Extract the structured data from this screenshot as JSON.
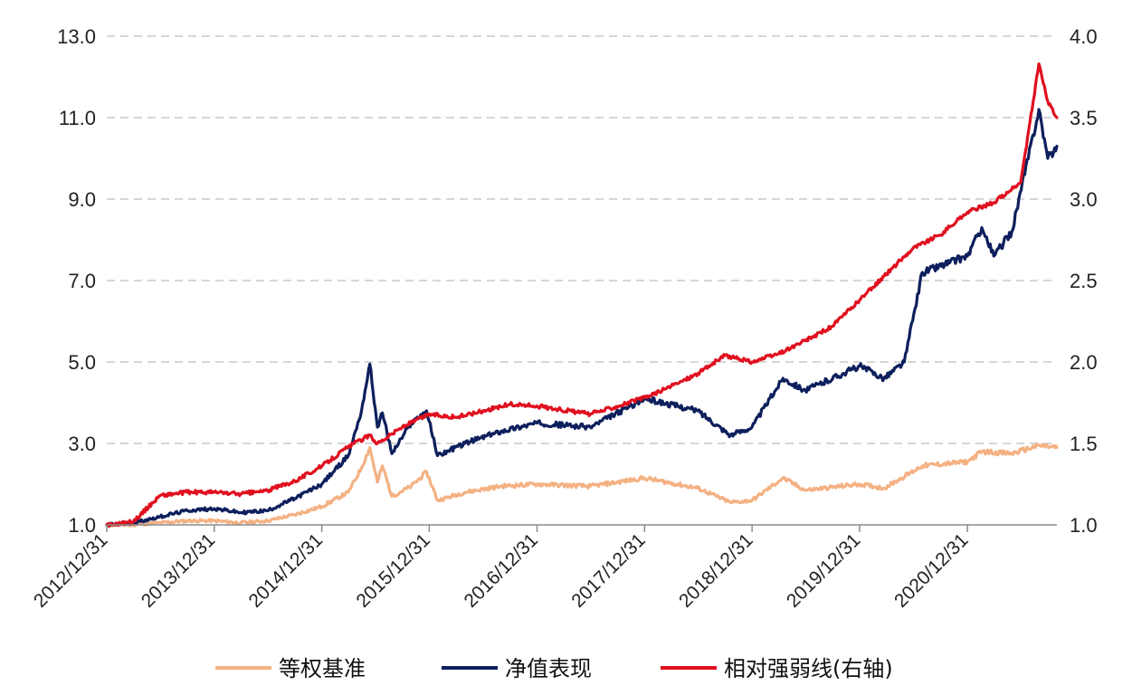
{
  "chart_data": {
    "type": "line",
    "title": "",
    "xlabel": "",
    "ylabel": "",
    "y_left": {
      "lim": [
        1.0,
        13.0
      ],
      "ticks": [
        "13.0",
        "11.0",
        "9.0",
        "7.0",
        "5.0",
        "3.0",
        "1.0"
      ]
    },
    "y_right": {
      "lim": [
        1.0,
        4.0
      ],
      "ticks": [
        "4.0",
        "3.5",
        "3.0",
        "2.5",
        "2.0",
        "1.5",
        "1.0"
      ]
    },
    "x_range": [
      "2012-12-31",
      "2021-10-31"
    ],
    "x_ticks": [
      "2012/12/31",
      "2013/12/31",
      "2014/12/31",
      "2015/12/31",
      "2016/12/31",
      "2017/12/31",
      "2018/12/31",
      "2019/12/31",
      "2020/12/31"
    ],
    "grid": "horizontal dashed",
    "legend_position": "bottom",
    "series": [
      {
        "name": "等权基准",
        "axis": "left",
        "color": "#f4b183",
        "points": [
          [
            "2012-12-31",
            1.0
          ],
          [
            "2013-03-31",
            1.0
          ],
          [
            "2013-06-30",
            1.05
          ],
          [
            "2013-09-30",
            1.1
          ],
          [
            "2013-12-31",
            1.1
          ],
          [
            "2014-03-31",
            1.05
          ],
          [
            "2014-06-30",
            1.1
          ],
          [
            "2014-09-30",
            1.25
          ],
          [
            "2014-12-31",
            1.45
          ],
          [
            "2015-03-31",
            1.8
          ],
          [
            "2015-05-15",
            2.4
          ],
          [
            "2015-06-12",
            2.9
          ],
          [
            "2015-07-08",
            2.05
          ],
          [
            "2015-07-25",
            2.45
          ],
          [
            "2015-08-26",
            1.7
          ],
          [
            "2015-10-31",
            1.95
          ],
          [
            "2015-12-22",
            2.3
          ],
          [
            "2016-01-28",
            1.6
          ],
          [
            "2016-04-30",
            1.8
          ],
          [
            "2016-08-31",
            1.95
          ],
          [
            "2016-12-31",
            2.0
          ],
          [
            "2017-06-30",
            1.95
          ],
          [
            "2017-12-31",
            2.15
          ],
          [
            "2018-06-30",
            1.9
          ],
          [
            "2018-10-19",
            1.55
          ],
          [
            "2018-12-31",
            1.6
          ],
          [
            "2019-04-15",
            2.15
          ],
          [
            "2019-06-30",
            1.85
          ],
          [
            "2019-12-31",
            2.0
          ],
          [
            "2020-03-23",
            1.9
          ],
          [
            "2020-07-31",
            2.45
          ],
          [
            "2020-12-31",
            2.55
          ],
          [
            "2021-02-18",
            2.8
          ],
          [
            "2021-05-31",
            2.75
          ],
          [
            "2021-08-31",
            2.95
          ],
          [
            "2021-10-31",
            2.9
          ]
        ]
      },
      {
        "name": "净值表现",
        "axis": "left",
        "color": "#0d1f5c",
        "points": [
          [
            "2012-12-31",
            1.0
          ],
          [
            "2013-03-31",
            1.05
          ],
          [
            "2013-06-30",
            1.2
          ],
          [
            "2013-09-30",
            1.35
          ],
          [
            "2013-12-31",
            1.4
          ],
          [
            "2014-03-31",
            1.3
          ],
          [
            "2014-06-30",
            1.35
          ],
          [
            "2014-09-30",
            1.65
          ],
          [
            "2014-12-31",
            2.0
          ],
          [
            "2015-03-31",
            2.7
          ],
          [
            "2015-05-15",
            3.8
          ],
          [
            "2015-06-12",
            4.95
          ],
          [
            "2015-07-08",
            3.4
          ],
          [
            "2015-07-25",
            3.75
          ],
          [
            "2015-08-26",
            2.75
          ],
          [
            "2015-10-31",
            3.5
          ],
          [
            "2015-12-22",
            3.8
          ],
          [
            "2016-01-28",
            2.7
          ],
          [
            "2016-04-30",
            3.0
          ],
          [
            "2016-08-31",
            3.3
          ],
          [
            "2016-12-31",
            3.5
          ],
          [
            "2017-06-30",
            3.4
          ],
          [
            "2017-12-31",
            4.1
          ],
          [
            "2018-06-30",
            3.8
          ],
          [
            "2018-10-19",
            3.2
          ],
          [
            "2018-12-31",
            3.4
          ],
          [
            "2019-04-15",
            4.6
          ],
          [
            "2019-06-30",
            4.3
          ],
          [
            "2019-12-31",
            4.9
          ],
          [
            "2020-03-23",
            4.6
          ],
          [
            "2020-05-31",
            5.0
          ],
          [
            "2020-07-31",
            7.2
          ],
          [
            "2020-12-31",
            7.6
          ],
          [
            "2021-02-18",
            8.3
          ],
          [
            "2021-03-31",
            7.6
          ],
          [
            "2021-05-31",
            8.2
          ],
          [
            "2021-08-31",
            11.2
          ],
          [
            "2021-09-30",
            10.0
          ],
          [
            "2021-10-31",
            10.3
          ]
        ]
      },
      {
        "name": "相对强弱线(右轴)",
        "axis": "right",
        "color": "#e0101f",
        "points": [
          [
            "2012-12-31",
            1.0
          ],
          [
            "2013-03-31",
            1.02
          ],
          [
            "2013-06-30",
            1.18
          ],
          [
            "2013-09-30",
            1.2
          ],
          [
            "2013-12-31",
            1.2
          ],
          [
            "2014-03-31",
            1.19
          ],
          [
            "2014-06-30",
            1.21
          ],
          [
            "2014-09-30",
            1.27
          ],
          [
            "2014-12-31",
            1.36
          ],
          [
            "2015-03-31",
            1.48
          ],
          [
            "2015-06-12",
            1.55
          ],
          [
            "2015-07-08",
            1.5
          ],
          [
            "2015-09-30",
            1.6
          ],
          [
            "2015-12-31",
            1.68
          ],
          [
            "2016-03-31",
            1.66
          ],
          [
            "2016-06-30",
            1.7
          ],
          [
            "2016-09-30",
            1.74
          ],
          [
            "2016-12-31",
            1.73
          ],
          [
            "2017-06-30",
            1.68
          ],
          [
            "2017-12-31",
            1.78
          ],
          [
            "2018-03-31",
            1.85
          ],
          [
            "2018-06-30",
            1.93
          ],
          [
            "2018-09-30",
            2.04
          ],
          [
            "2018-12-31",
            2.0
          ],
          [
            "2019-03-31",
            2.05
          ],
          [
            "2019-06-30",
            2.13
          ],
          [
            "2019-09-30",
            2.22
          ],
          [
            "2019-12-31",
            2.38
          ],
          [
            "2020-06-30",
            2.7
          ],
          [
            "2020-09-30",
            2.78
          ],
          [
            "2020-12-31",
            2.92
          ],
          [
            "2021-03-31",
            2.98
          ],
          [
            "2021-06-30",
            3.1
          ],
          [
            "2021-08-31",
            3.83
          ],
          [
            "2021-09-30",
            3.6
          ],
          [
            "2021-10-31",
            3.5
          ]
        ]
      }
    ]
  }
}
